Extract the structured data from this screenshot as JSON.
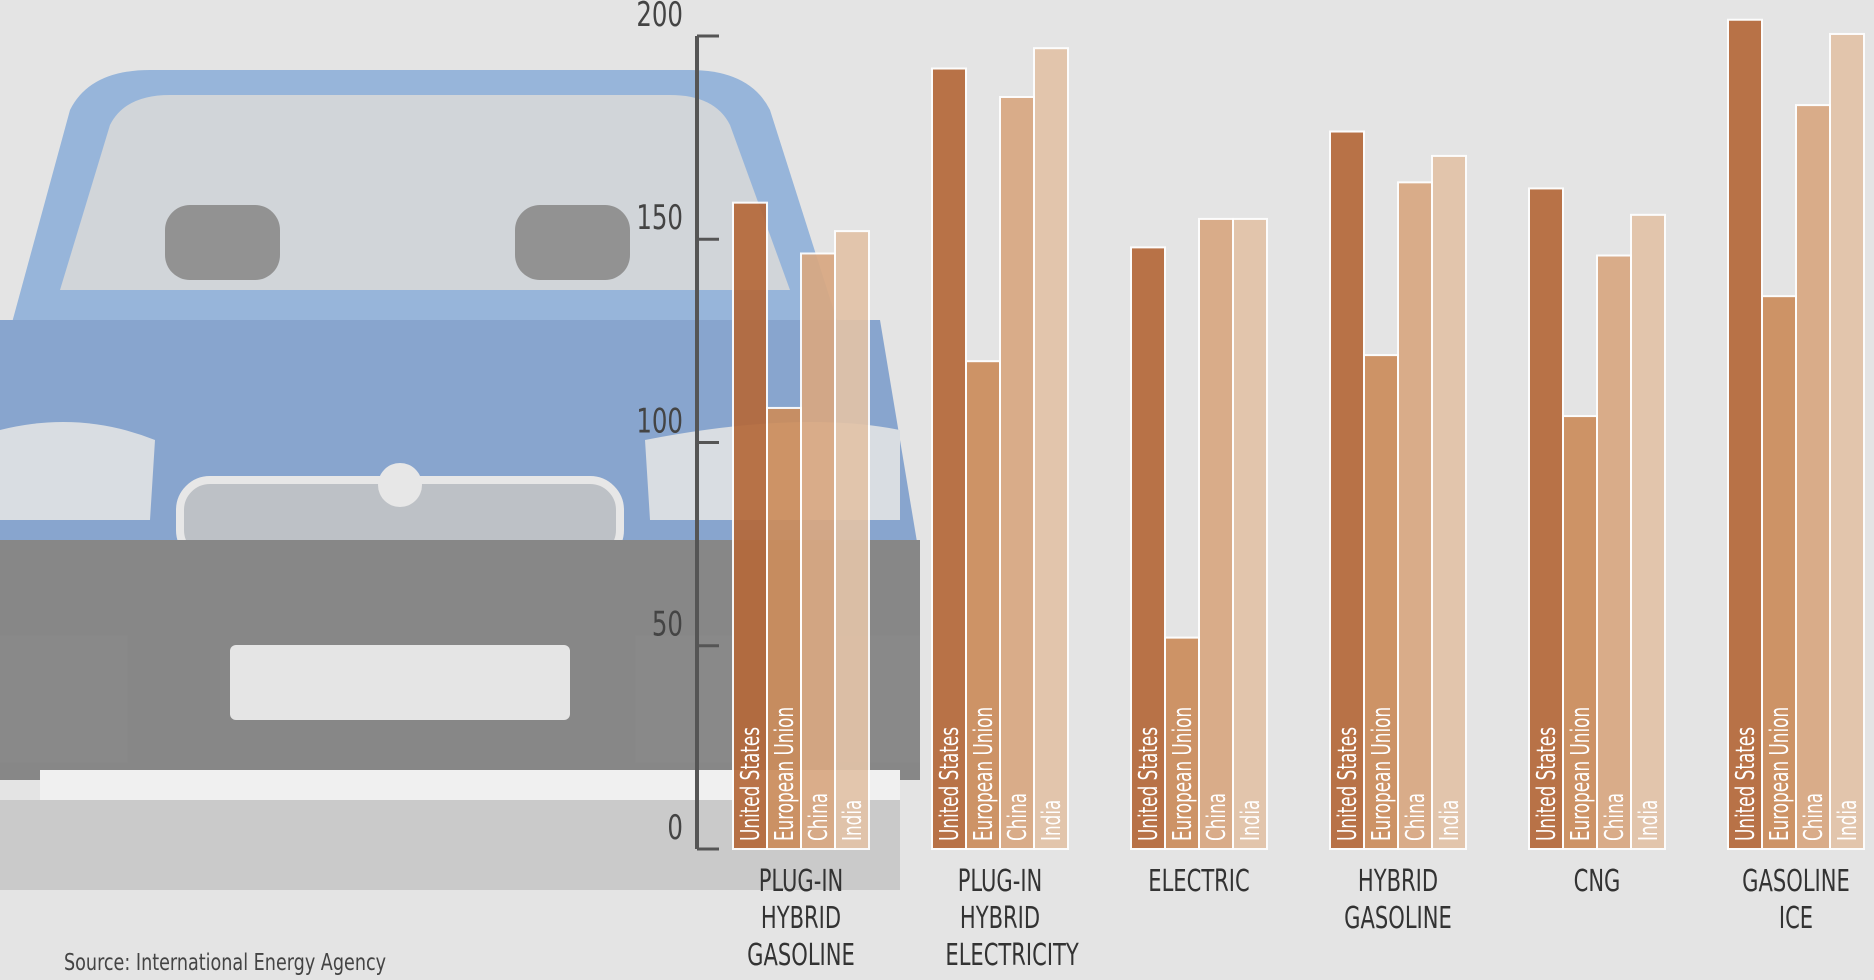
{
  "chart_data": {
    "type": "bar",
    "categories": [
      "PLUG-IN HYBRID GASOLINE",
      "PLUG-IN HYBRID ELECTRICITY",
      "ELECTRIC",
      "HYBRID GASOLINE",
      "CNG",
      "GASOLINE ICE"
    ],
    "series": [
      {
        "name": "United States",
        "color": "#b5693a",
        "values": [
          159,
          192,
          148,
          176.5,
          162.5,
          204
        ]
      },
      {
        "name": "European Union",
        "color": "#cc8d5c",
        "values": [
          108.5,
          120,
          52,
          121.5,
          106.5,
          136
        ]
      },
      {
        "name": "China",
        "color": "#d9a882",
        "values": [
          146.5,
          185,
          155,
          164,
          146,
          183
        ]
      },
      {
        "name": "India",
        "color": "#e2c3a8",
        "values": [
          152,
          197,
          155,
          170.5,
          156,
          200.5
        ]
      }
    ],
    "ylim": [
      0,
      200
    ],
    "yticks": [
      0,
      50,
      100,
      150,
      200
    ],
    "source": "Source: International Energy Agency"
  }
}
